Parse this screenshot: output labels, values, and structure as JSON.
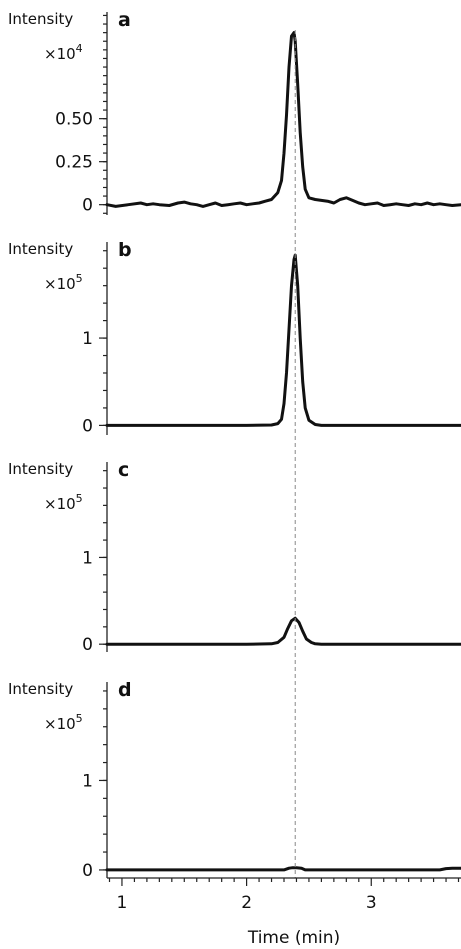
{
  "colors": {
    "trace": "#111111",
    "reference": "#888888"
  },
  "chart_data": {
    "type": "line",
    "xlabel": "Time (min)",
    "xlim": [
      0.88,
      3.72
    ],
    "x_ticks": [
      {
        "value": 1,
        "label": "1"
      },
      {
        "value": 2,
        "label": "2"
      },
      {
        "value": 3,
        "label": "3"
      }
    ],
    "reference_line_x": 2.39,
    "panels": [
      {
        "letter": "a",
        "ylabel": "Intensity",
        "scale_prefix": "×10",
        "scale_exponent": "4",
        "ylim": [
          -0.06,
          1.12
        ],
        "y_ticks": [
          {
            "value": 0,
            "label": "0"
          },
          {
            "value": 0.25,
            "label": "0.25"
          },
          {
            "value": 0.5,
            "label": "0.50"
          }
        ],
        "series": [
          {
            "x": [
              0.88,
              0.95,
              1.05,
              1.15,
              1.2,
              1.25,
              1.3,
              1.38,
              1.45,
              1.5,
              1.55,
              1.6,
              1.65,
              1.7,
              1.75,
              1.8,
              1.85,
              1.9,
              1.95,
              2.0,
              2.05,
              2.1,
              2.15,
              2.2,
              2.25,
              2.28,
              2.3,
              2.32,
              2.34,
              2.36,
              2.38,
              2.39,
              2.41,
              2.43,
              2.45,
              2.47,
              2.5,
              2.55,
              2.6,
              2.65,
              2.7,
              2.75,
              2.8,
              2.85,
              2.9,
              2.95,
              3.0,
              3.05,
              3.1,
              3.15,
              3.2,
              3.25,
              3.3,
              3.35,
              3.4,
              3.45,
              3.5,
              3.55,
              3.6,
              3.65,
              3.72
            ],
            "y": [
              0.0,
              -0.01,
              0.0,
              0.01,
              0.0,
              0.005,
              0.0,
              -0.005,
              0.01,
              0.015,
              0.005,
              0.0,
              -0.01,
              0.0,
              0.01,
              -0.005,
              0.0,
              0.005,
              0.01,
              0.0,
              0.005,
              0.01,
              0.02,
              0.03,
              0.07,
              0.14,
              0.3,
              0.52,
              0.8,
              0.98,
              1.0,
              0.95,
              0.7,
              0.42,
              0.22,
              0.09,
              0.04,
              0.03,
              0.025,
              0.02,
              0.01,
              0.03,
              0.04,
              0.025,
              0.01,
              0.0,
              0.005,
              0.01,
              -0.005,
              0.0,
              0.005,
              0.0,
              -0.005,
              0.005,
              0.0,
              0.01,
              0.0,
              0.005,
              0.0,
              -0.005,
              0.0
            ]
          }
        ]
      },
      {
        "letter": "b",
        "ylabel": "Intensity",
        "scale_prefix": "×10",
        "scale_exponent": "5",
        "ylim": [
          -0.11,
          2.1
        ],
        "y_ticks": [
          {
            "value": 0,
            "label": "0"
          },
          {
            "value": 1,
            "label": "1"
          }
        ],
        "series": [
          {
            "x": [
              0.88,
              1.5,
              2.0,
              2.2,
              2.25,
              2.28,
              2.3,
              2.32,
              2.34,
              2.36,
              2.38,
              2.39,
              2.41,
              2.43,
              2.45,
              2.47,
              2.5,
              2.55,
              2.6,
              3.0,
              3.72
            ],
            "y": [
              0.0,
              0.0,
              0.0,
              0.005,
              0.02,
              0.07,
              0.25,
              0.6,
              1.1,
              1.6,
              1.9,
              1.95,
              1.6,
              1.0,
              0.5,
              0.2,
              0.06,
              0.01,
              0.0,
              0.0,
              0.0
            ]
          }
        ]
      },
      {
        "letter": "c",
        "ylabel": "Intensity",
        "scale_prefix": "×10",
        "scale_exponent": "5",
        "ylim": [
          -0.09,
          2.1
        ],
        "y_ticks": [
          {
            "value": 0,
            "label": "0"
          },
          {
            "value": 1,
            "label": "1"
          }
        ],
        "series": [
          {
            "x": [
              0.88,
              1.5,
              2.0,
              2.2,
              2.25,
              2.3,
              2.33,
              2.36,
              2.39,
              2.42,
              2.45,
              2.48,
              2.52,
              2.55,
              2.6,
              3.0,
              3.72
            ],
            "y": [
              0.0,
              0.0,
              0.0,
              0.005,
              0.02,
              0.08,
              0.18,
              0.27,
              0.3,
              0.25,
              0.15,
              0.06,
              0.02,
              0.005,
              0.0,
              0.0,
              0.0
            ]
          }
        ]
      },
      {
        "letter": "d",
        "ylabel": "Intensity",
        "scale_prefix": "×10",
        "scale_exponent": "5",
        "ylim": [
          -0.09,
          2.1
        ],
        "y_ticks": [
          {
            "value": 0,
            "label": "0"
          },
          {
            "value": 1,
            "label": "1"
          }
        ],
        "series": [
          {
            "x": [
              0.88,
              1.5,
              2.0,
              2.3,
              2.34,
              2.37,
              2.4,
              2.44,
              2.47,
              2.5,
              3.0,
              3.55,
              3.6,
              3.65,
              3.72
            ],
            "y": [
              0.0,
              0.0,
              0.0,
              0.0,
              0.02,
              0.025,
              0.025,
              0.02,
              0.0,
              0.0,
              0.0,
              0.0,
              0.015,
              0.02,
              0.02
            ]
          }
        ]
      }
    ]
  }
}
